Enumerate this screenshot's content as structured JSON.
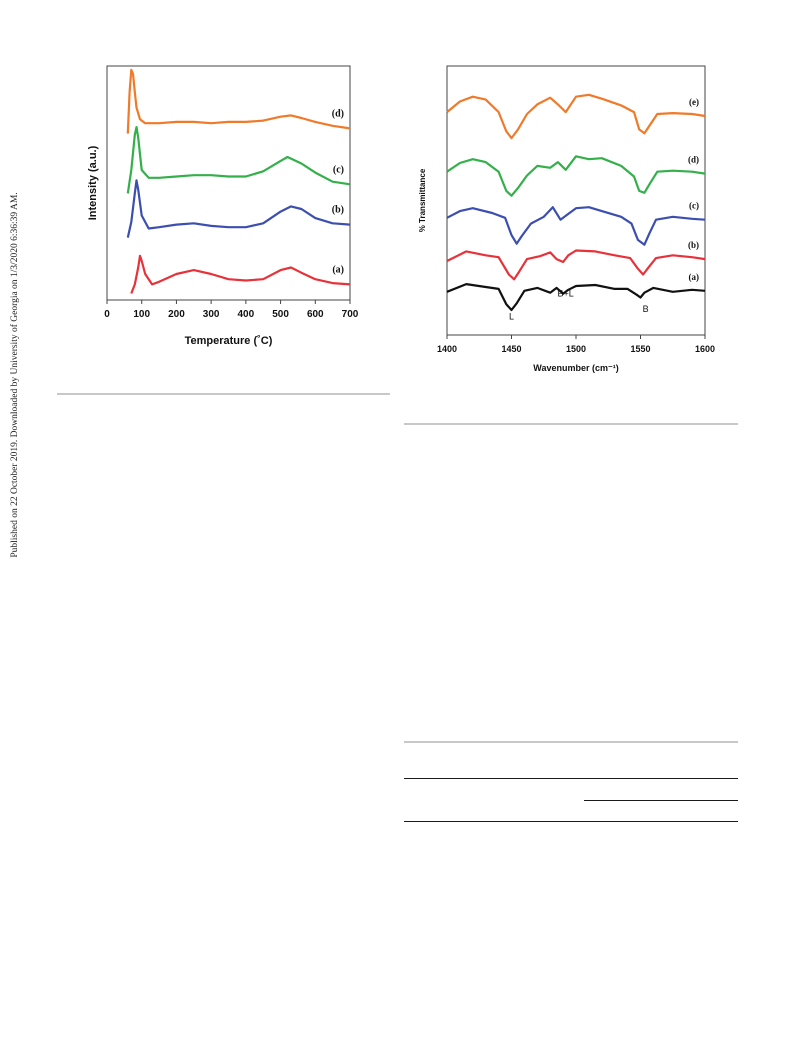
{
  "sidebar_text": "Published on 22 October 2019. Downloaded by University of Georgia on 1/3/2020 6:36:39 AM.",
  "colors": {
    "orange": "#f07a2a",
    "green": "#33b04a",
    "blue": "#3c4fb0",
    "red": "#e8323a",
    "black": "#111111"
  },
  "chart_data": [
    {
      "type": "line",
      "xlabel": "Temperature (˚C)",
      "ylabel": "Intensity (a.u.)",
      "xlim": [
        0,
        700
      ],
      "xticks": [
        0,
        100,
        200,
        300,
        400,
        500,
        600,
        700
      ],
      "ylim": [
        0,
        18
      ],
      "grid": false,
      "series": [
        {
          "name": "(a)",
          "color": "#e8323a",
          "x": [
            70,
            80,
            90,
            95,
            100,
            110,
            130,
            150,
            200,
            250,
            300,
            350,
            400,
            450,
            500,
            530,
            560,
            600,
            650,
            700
          ],
          "y": [
            0.5,
            1.2,
            2.5,
            3.4,
            3.0,
            2.0,
            1.2,
            1.4,
            2.0,
            2.3,
            2.0,
            1.6,
            1.5,
            1.6,
            2.3,
            2.5,
            2.1,
            1.6,
            1.3,
            1.2
          ]
        },
        {
          "name": "(b)",
          "color": "#3c4fb0",
          "x": [
            60,
            70,
            80,
            85,
            90,
            100,
            120,
            150,
            200,
            250,
            300,
            350,
            400,
            450,
            500,
            530,
            560,
            600,
            650,
            700
          ],
          "y": [
            4.8,
            6.0,
            8.2,
            9.2,
            8.5,
            6.5,
            5.5,
            5.6,
            5.8,
            5.9,
            5.7,
            5.6,
            5.6,
            5.9,
            6.8,
            7.2,
            7.0,
            6.3,
            5.9,
            5.8
          ]
        },
        {
          "name": "(c)",
          "color": "#33b04a",
          "x": [
            60,
            70,
            80,
            85,
            90,
            100,
            120,
            150,
            200,
            250,
            300,
            350,
            400,
            450,
            500,
            520,
            560,
            600,
            650,
            700
          ],
          "y": [
            8.2,
            10.0,
            12.7,
            13.3,
            12.5,
            10.0,
            9.4,
            9.4,
            9.5,
            9.6,
            9.6,
            9.5,
            9.5,
            9.9,
            10.7,
            11.0,
            10.5,
            9.8,
            9.1,
            8.9
          ]
        },
        {
          "name": "(d)",
          "color": "#f07a2a",
          "x": [
            60,
            65,
            70,
            75,
            80,
            85,
            95,
            110,
            150,
            200,
            250,
            300,
            350,
            400,
            450,
            500,
            530,
            560,
            600,
            650,
            700
          ],
          "y": [
            12.8,
            16.0,
            17.7,
            17.4,
            16.0,
            14.8,
            13.9,
            13.6,
            13.6,
            13.7,
            13.7,
            13.6,
            13.7,
            13.7,
            13.8,
            14.1,
            14.2,
            14.0,
            13.7,
            13.4,
            13.2
          ]
        }
      ]
    },
    {
      "type": "line",
      "xlabel": "Wavenumber (cm⁻¹)",
      "ylabel": "% Transmittance",
      "xlim": [
        1400,
        1600
      ],
      "xticks": [
        1400,
        1450,
        1500,
        1550,
        1600
      ],
      "ylim": [
        0,
        28
      ],
      "grid": false,
      "annotations": [
        {
          "text": "L",
          "x": 1450,
          "y": 1.6
        },
        {
          "text": "B+L",
          "x": 1492,
          "y": 4.0
        },
        {
          "text": "B",
          "x": 1554,
          "y": 2.4
        }
      ],
      "series": [
        {
          "name": "(a)",
          "color": "#111111",
          "x": [
            1400,
            1415,
            1430,
            1440,
            1446,
            1450,
            1454,
            1460,
            1470,
            1480,
            1485,
            1490,
            1494,
            1500,
            1515,
            1530,
            1540,
            1547,
            1550,
            1553,
            1560,
            1575,
            1590,
            1600
          ],
          "y": [
            4.5,
            5.3,
            5.0,
            4.8,
            3.2,
            2.6,
            3.3,
            4.6,
            4.9,
            4.4,
            4.9,
            4.3,
            4.7,
            5.1,
            5.2,
            4.8,
            4.8,
            4.2,
            3.9,
            4.4,
            4.9,
            4.5,
            4.7,
            4.6
          ]
        },
        {
          "name": "(b)",
          "color": "#e8323a",
          "x": [
            1400,
            1415,
            1430,
            1440,
            1448,
            1452,
            1456,
            1462,
            1472,
            1480,
            1485,
            1490,
            1494,
            1500,
            1515,
            1530,
            1542,
            1548,
            1552,
            1556,
            1562,
            1575,
            1590,
            1600
          ],
          "y": [
            7.7,
            8.7,
            8.3,
            8.1,
            6.3,
            5.8,
            6.6,
            7.9,
            8.2,
            8.6,
            7.9,
            7.6,
            8.3,
            8.8,
            8.7,
            8.3,
            8.0,
            6.9,
            6.3,
            7.0,
            8.0,
            8.3,
            8.1,
            7.9
          ]
        },
        {
          "name": "(c)",
          "color": "#3c4fb0",
          "x": [
            1400,
            1410,
            1420,
            1435,
            1445,
            1450,
            1454,
            1458,
            1465,
            1475,
            1482,
            1488,
            1494,
            1500,
            1510,
            1520,
            1535,
            1543,
            1548,
            1553,
            1557,
            1562,
            1575,
            1590,
            1600
          ],
          "y": [
            12.2,
            12.9,
            13.2,
            12.7,
            12.2,
            10.4,
            9.5,
            10.3,
            11.6,
            12.3,
            13.3,
            12.0,
            12.6,
            13.2,
            13.3,
            12.9,
            12.3,
            11.6,
            9.9,
            9.4,
            10.6,
            12.0,
            12.3,
            12.1,
            12.0
          ]
        },
        {
          "name": "(d)",
          "color": "#33b04a",
          "x": [
            1400,
            1410,
            1420,
            1430,
            1440,
            1446,
            1450,
            1455,
            1462,
            1470,
            1480,
            1486,
            1492,
            1500,
            1510,
            1520,
            1535,
            1545,
            1549,
            1553,
            1557,
            1563,
            1575,
            1590,
            1600
          ],
          "y": [
            17.0,
            17.9,
            18.3,
            18.0,
            17.0,
            15.0,
            14.5,
            15.3,
            16.6,
            17.6,
            17.4,
            18.0,
            17.2,
            18.6,
            18.3,
            18.4,
            17.6,
            16.5,
            15.0,
            14.8,
            15.7,
            17.0,
            17.1,
            17.0,
            16.8
          ]
        },
        {
          "name": "(e)",
          "color": "#f07a2a",
          "x": [
            1400,
            1410,
            1420,
            1430,
            1440,
            1446,
            1450,
            1455,
            1462,
            1470,
            1480,
            1486,
            1492,
            1500,
            1510,
            1520,
            1535,
            1545,
            1549,
            1553,
            1557,
            1563,
            1575,
            1590,
            1600
          ],
          "y": [
            23.2,
            24.3,
            24.8,
            24.5,
            23.2,
            21.2,
            20.5,
            21.4,
            23.0,
            24.0,
            24.7,
            24.0,
            23.2,
            24.8,
            25.0,
            24.6,
            23.9,
            23.2,
            21.4,
            21.0,
            21.8,
            23.0,
            23.1,
            23.0,
            22.8
          ]
        }
      ]
    }
  ]
}
